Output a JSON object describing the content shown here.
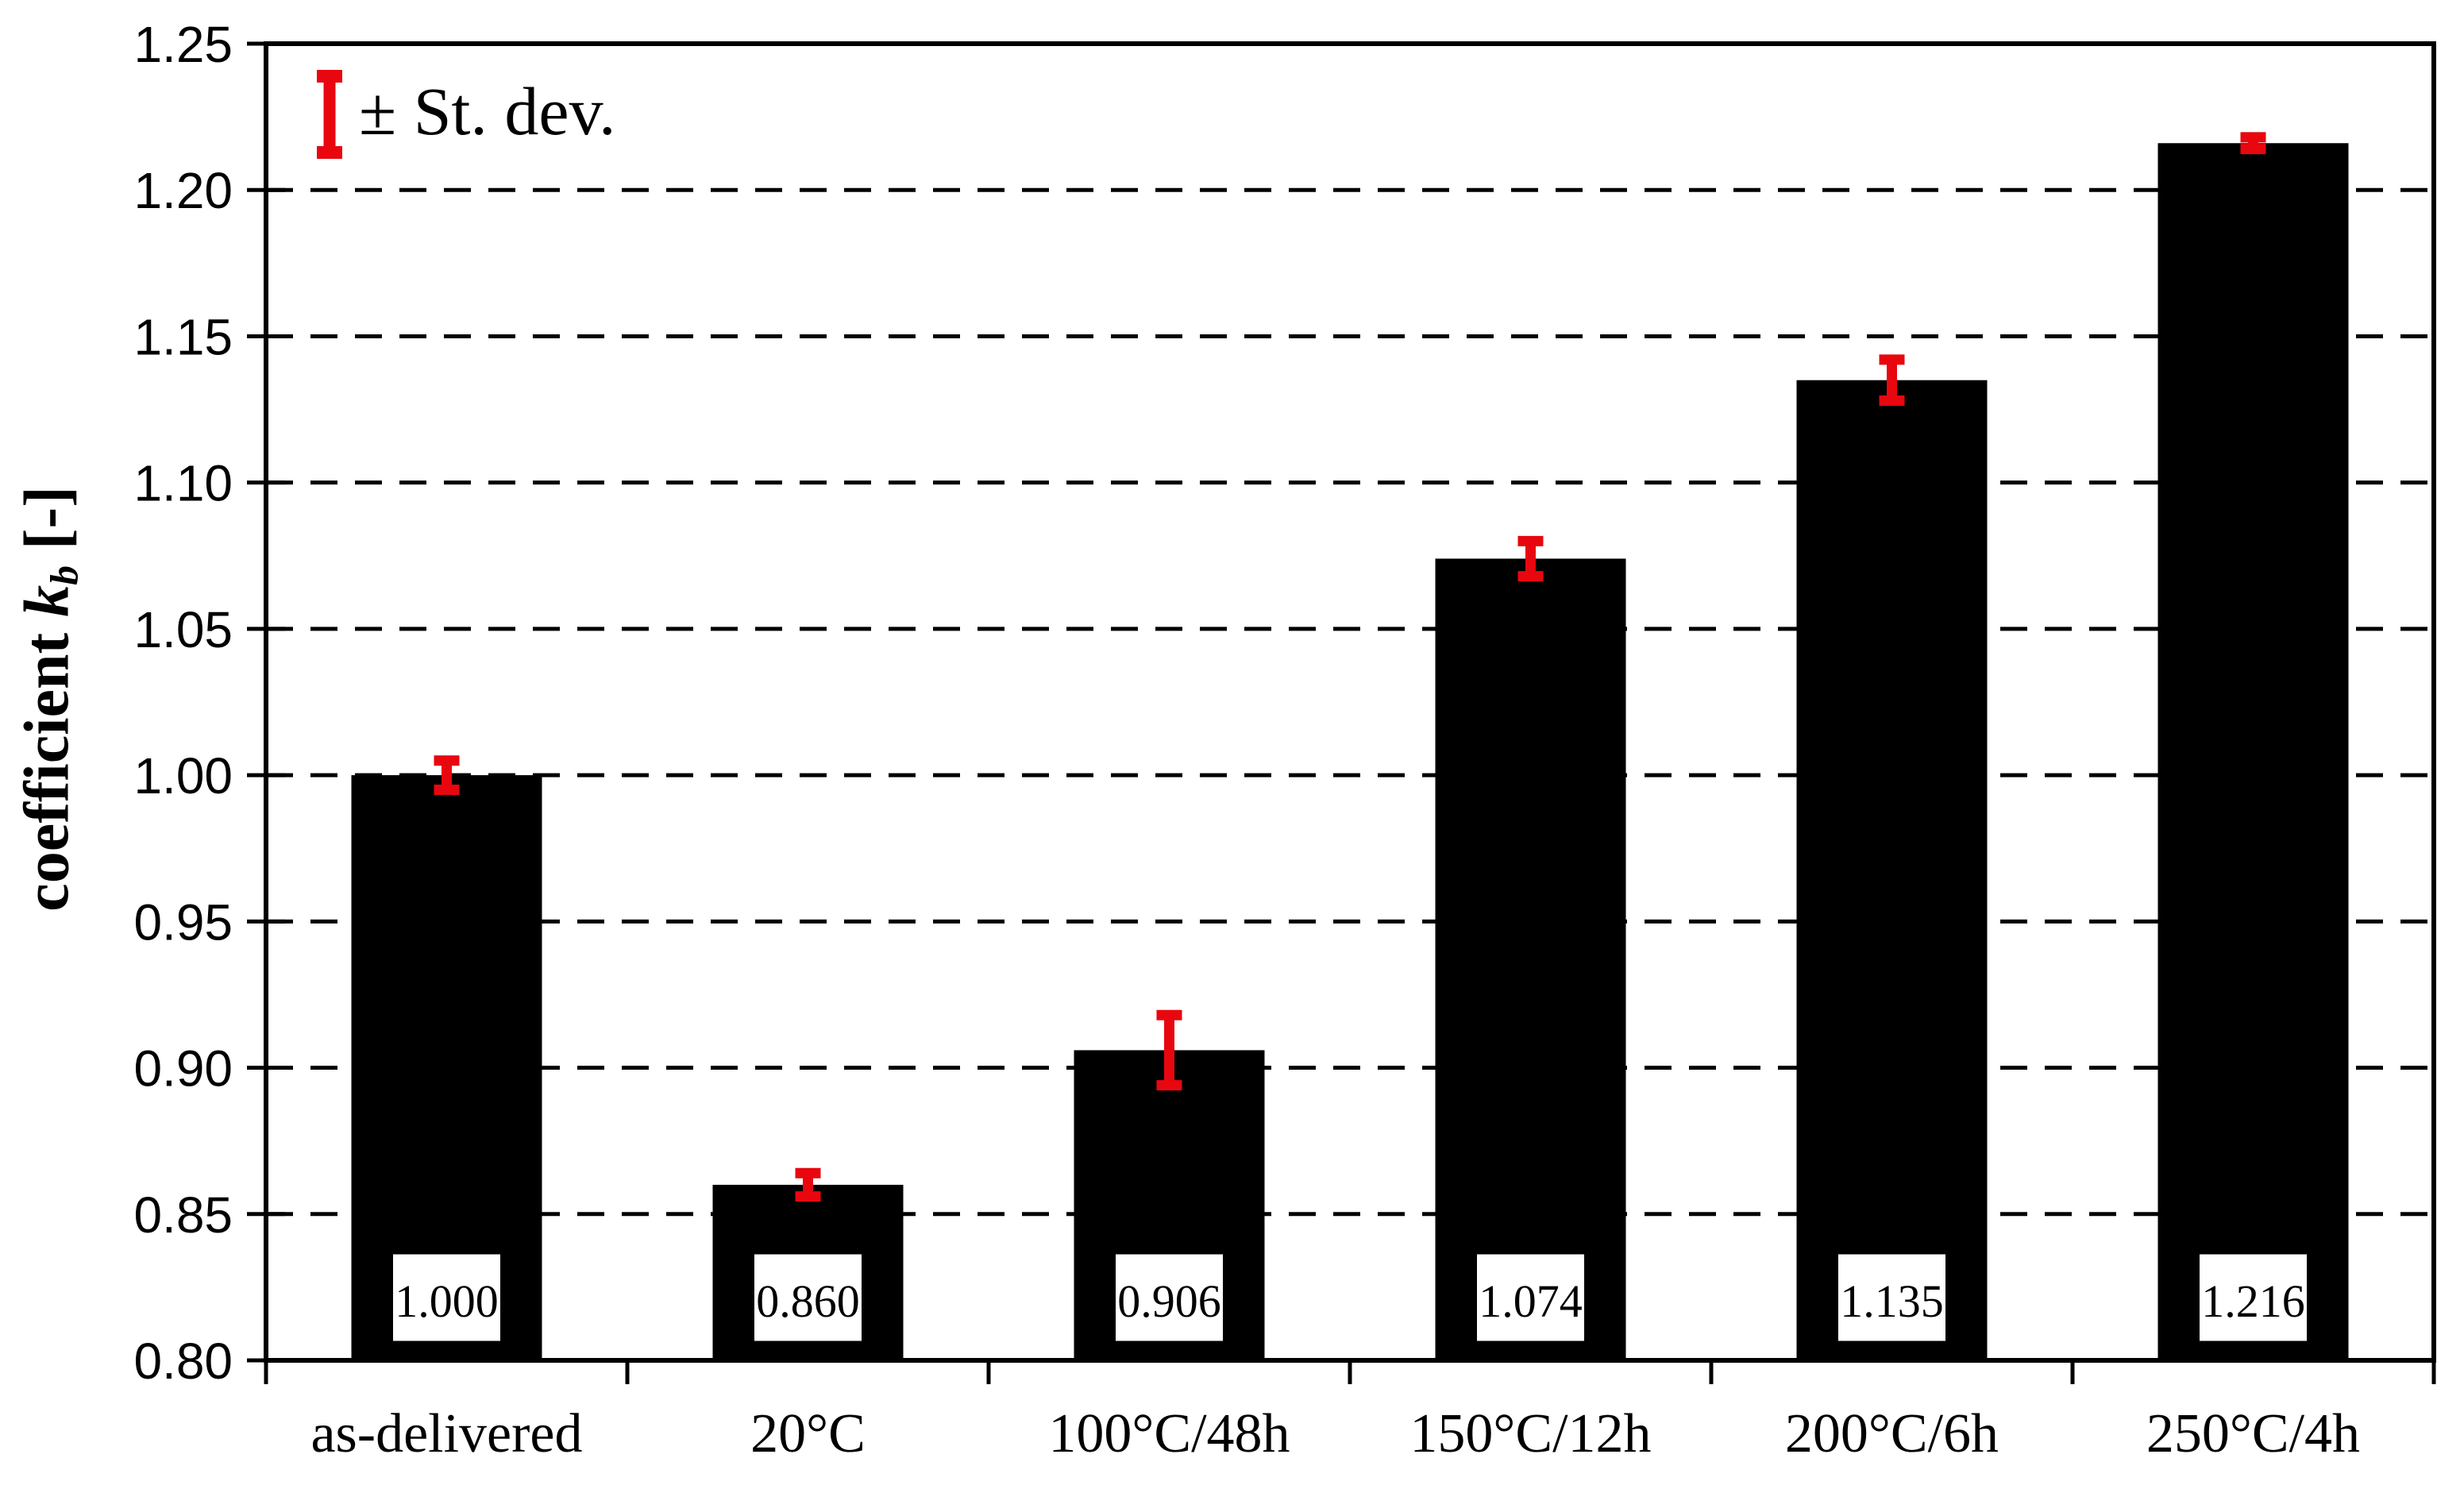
{
  "figure": {
    "background": "#ffffff",
    "bar_color": "#000000",
    "error_bar_color": "#e8070f",
    "grid_color": "#000000",
    "label_box_fill": "#ffffff",
    "label_box_border": "#000000"
  },
  "legend": {
    "label": "± St. dev.",
    "icon": "error-bar-icon",
    "icon_color": "#e8070f",
    "position": "top-left"
  },
  "y_axis": {
    "title_prefix": "coefficient ",
    "title_symbol": "k",
    "title_subscript": "b",
    "title_suffix": " [-]",
    "tick_labels": [
      "1.25",
      "1.20",
      "1.15",
      "1.10",
      "1.05",
      "1.00",
      "0.95",
      "0.90",
      "0.85",
      "0.80"
    ]
  },
  "chart_data": {
    "type": "bar",
    "title": "",
    "xlabel": "",
    "ylabel": "coefficient k_b [-]",
    "categories": [
      "as-delivered",
      "20°C",
      "100°C/48h",
      "150°C/12h",
      "200°C/6h",
      "250°C/4h"
    ],
    "values": [
      1.0,
      0.86,
      0.906,
      1.074,
      1.135,
      1.216
    ],
    "value_labels": [
      "1.000",
      "0.860",
      "0.906",
      "1.074",
      "1.135",
      "1.216"
    ],
    "errors": [
      0.005,
      0.004,
      0.012,
      0.006,
      0.007,
      0.002
    ],
    "ylim": [
      0.8,
      1.25
    ],
    "ytick_step": 0.05,
    "grid": "horizontal-dashed",
    "legend_entries": [
      "± St. dev."
    ],
    "legend_position": "top-left",
    "bar_color": "#000000",
    "error_bar_color": "#e8070f"
  }
}
